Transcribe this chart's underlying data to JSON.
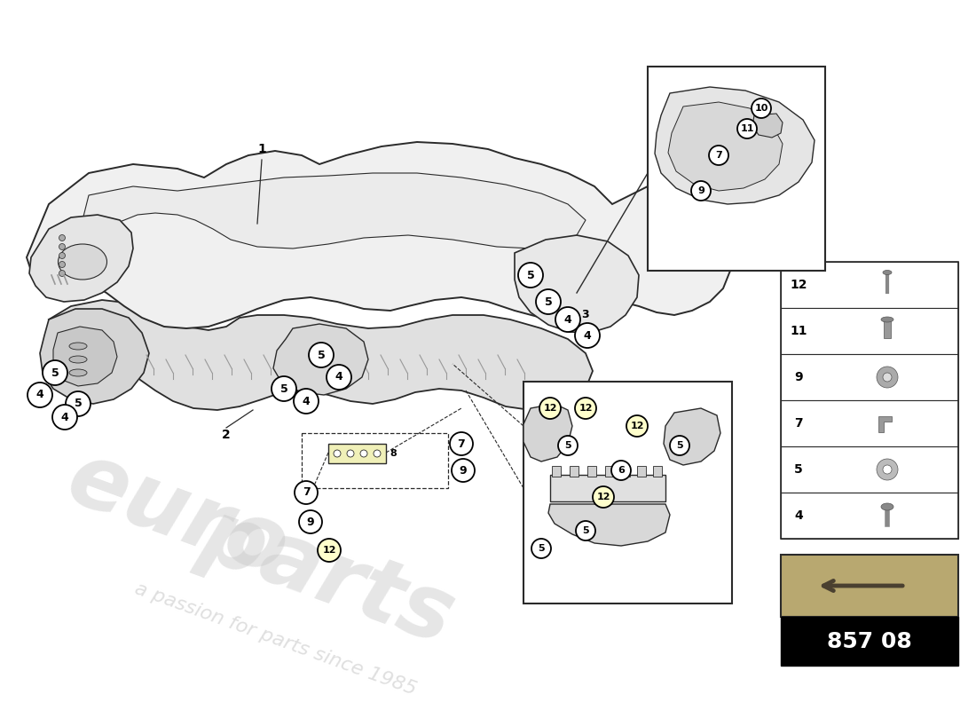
{
  "bg_color": "#ffffff",
  "line_color": "#2a2a2a",
  "light_line_color": "#999999",
  "circle_fill": "#ffffff",
  "circle_border": "#000000",
  "highlight_circle_fill": "#ffffcc",
  "part_number_box_bg": "#000000",
  "part_number_text": "857 08",
  "part_number_text_color": "#ffffff",
  "watermark_euro": "euro",
  "watermark_parts": "parts",
  "watermark_tagline": "a passion for parts since 1985",
  "legend_items": [
    {
      "num": "12"
    },
    {
      "num": "11"
    },
    {
      "num": "9"
    },
    {
      "num": "7"
    },
    {
      "num": "5"
    },
    {
      "num": "4"
    }
  ],
  "top_panel_color": "#f2f2f2",
  "frame_color": "#e8e8e8",
  "inset_bg": "#ffffff",
  "inset_border": "#333333"
}
